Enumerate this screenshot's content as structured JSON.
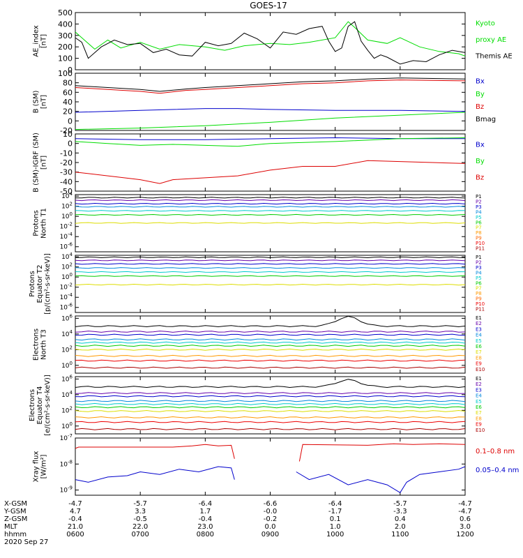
{
  "chart_data": {
    "type": "line",
    "title": "GOES-17",
    "date": "2020 Sep 27",
    "x_ticks": [
      "0600",
      "0700",
      "0800",
      "0900",
      "1000",
      "1100",
      "1200"
    ],
    "footer_rows": [
      {
        "label": "X-GSM",
        "values": [
          "-4.7",
          "-5.7",
          "-6.4",
          "-6.6",
          "-6.4",
          "-5.7",
          "-4.7"
        ]
      },
      {
        "label": "Y-GSM",
        "values": [
          "4.7",
          "3.3",
          "1.7",
          "-0.0",
          "-1.7",
          "-3.3",
          "-4.7"
        ]
      },
      {
        "label": "Z-GSM",
        "values": [
          "-0.4",
          "-0.5",
          "-0.4",
          "-0.2",
          "0.1",
          "0.4",
          "0.6"
        ]
      },
      {
        "label": "MLT",
        "values": [
          "21.0",
          "22.0",
          "23.0",
          "0.0",
          "1.0",
          "2.0",
          "3.0"
        ]
      },
      {
        "label": "hhmm",
        "values": [
          "0600",
          "0700",
          "0800",
          "0900",
          "1000",
          "1100",
          "1200"
        ]
      }
    ],
    "panels": [
      {
        "id": "ae",
        "ylabel": [
          "AE_index",
          "[nT]"
        ],
        "yticks": [
          "500",
          "400",
          "300",
          "200",
          "100",
          "0"
        ],
        "ymin": 0,
        "ymax": 500,
        "legend": [
          {
            "text": "Kyoto",
            "color": "#00dd00"
          },
          {
            "text": "proxy AE",
            "color": "#00dd00"
          },
          {
            "text": "Themis AE",
            "color": "#000000"
          }
        ],
        "series": [
          {
            "name": "Kyoto proxy AE",
            "color": "#00dd00",
            "x": [
              6.0,
              6.1,
              6.3,
              6.5,
              6.7,
              7.0,
              7.3,
              7.6,
              8.0,
              8.3,
              8.6,
              9.0,
              9.3,
              9.6,
              10.0,
              10.2,
              10.3,
              10.5,
              10.8,
              11.0,
              11.3,
              11.6,
              11.9,
              12.0
            ],
            "y": [
              330,
              280,
              180,
              260,
              190,
              240,
              180,
              220,
              200,
              170,
              210,
              230,
              220,
              240,
              280,
              420,
              370,
              260,
              230,
              280,
              200,
              160,
              140,
              120
            ]
          },
          {
            "name": "Themis AE",
            "color": "#000000",
            "x": [
              6.0,
              6.1,
              6.2,
              6.4,
              6.6,
              6.8,
              7.0,
              7.2,
              7.4,
              7.6,
              7.8,
              8.0,
              8.2,
              8.4,
              8.6,
              8.8,
              9.0,
              9.2,
              9.4,
              9.6,
              9.8,
              9.9,
              10.0,
              10.1,
              10.2,
              10.3,
              10.4,
              10.5,
              10.6,
              10.7,
              10.8,
              11.0,
              11.2,
              11.4,
              11.6,
              11.8,
              12.0
            ],
            "y": [
              280,
              240,
              100,
              200,
              260,
              220,
              230,
              150,
              180,
              130,
              120,
              240,
              210,
              230,
              320,
              270,
              190,
              330,
              310,
              360,
              380,
              250,
              160,
              190,
              380,
              420,
              250,
              170,
              100,
              130,
              110,
              50,
              80,
              70,
              130,
              170,
              150
            ]
          }
        ]
      },
      {
        "id": "b",
        "ylabel": [
          "B (SM)",
          "[nT]"
        ],
        "yticks": [
          "100",
          "80",
          "60",
          "40",
          "20",
          "0",
          "-20"
        ],
        "ymin": -20,
        "ymax": 100,
        "legend": [
          {
            "text": "Bx",
            "color": "#0000cc"
          },
          {
            "text": "By",
            "color": "#00dd00"
          },
          {
            "text": "Bz",
            "color": "#dd0000"
          },
          {
            "text": "Bmag",
            "color": "#000000"
          }
        ],
        "series": [
          {
            "name": "Bx",
            "color": "#0000cc",
            "x": [
              6.0,
              7.0,
              8.0,
              8.5,
              9.0,
              10.0,
              11.0,
              12.0
            ],
            "y": [
              18,
              22,
              26,
              26,
              24,
              22,
              22,
              20
            ]
          },
          {
            "name": "By",
            "color": "#00dd00",
            "x": [
              6.0,
              7.0,
              8.0,
              9.0,
              10.0,
              11.0,
              12.0
            ],
            "y": [
              -18,
              -15,
              -10,
              -3,
              6,
              12,
              18
            ]
          },
          {
            "name": "Bz",
            "color": "#dd0000",
            "x": [
              6.0,
              6.5,
              7.0,
              7.3,
              7.7,
              8.0,
              8.5,
              9.0,
              9.5,
              10.0,
              10.5,
              11.0,
              12.0
            ],
            "y": [
              70,
              66,
              62,
              58,
              64,
              66,
              70,
              74,
              78,
              80,
              84,
              86,
              84
            ]
          },
          {
            "name": "Bmag",
            "color": "#000000",
            "x": [
              6.0,
              6.5,
              7.0,
              7.3,
              7.7,
              8.0,
              8.5,
              9.0,
              9.5,
              10.0,
              10.5,
              11.0,
              12.0
            ],
            "y": [
              74,
              70,
              66,
              62,
              67,
              70,
              74,
              78,
              82,
              84,
              88,
              90,
              88
            ]
          }
        ]
      },
      {
        "id": "bd",
        "ylabel": [
          "B (SM)-IGRF (SM)",
          "[nT]"
        ],
        "yticks": [
          "10",
          "0",
          "-10",
          "-20",
          "-30",
          "-40",
          "-50"
        ],
        "ymin": -50,
        "ymax": 10,
        "legend": [
          {
            "text": "Bx",
            "color": "#0000cc"
          },
          {
            "text": "By",
            "color": "#00dd00"
          },
          {
            "text": "Bz",
            "color": "#dd0000"
          }
        ],
        "series": [
          {
            "name": "Bx",
            "color": "#0000cc",
            "x": [
              6.0,
              7.0,
              8.0,
              9.0,
              10.0,
              11.0,
              12.0
            ],
            "y": [
              5,
              4,
              4,
              5,
              6,
              5,
              5
            ]
          },
          {
            "name": "By",
            "color": "#00dd00",
            "x": [
              6.0,
              6.5,
              7.0,
              7.5,
              8.0,
              8.5,
              9.0,
              10.0,
              11.0,
              12.0
            ],
            "y": [
              2,
              0,
              -2,
              -1,
              -2,
              -3,
              0,
              2,
              5,
              6
            ]
          },
          {
            "name": "Bz",
            "color": "#dd0000",
            "x": [
              6.0,
              6.5,
              7.0,
              7.3,
              7.5,
              8.0,
              8.5,
              9.0,
              9.5,
              10.0,
              10.5,
              11.0,
              11.5,
              12.0
            ],
            "y": [
              -30,
              -34,
              -38,
              -42,
              -38,
              -36,
              -34,
              -28,
              -24,
              -24,
              -18,
              -19,
              -20,
              -21
            ]
          }
        ]
      },
      {
        "id": "pn",
        "ylabel": [
          "Protons",
          "North T1"
        ],
        "log": true,
        "yexp": [
          4,
          2,
          0,
          -2,
          -4,
          -6
        ],
        "ymin": -7,
        "ymax": 4.3,
        "legend": [
          {
            "text": "P1",
            "color": "#000000"
          },
          {
            "text": "P2",
            "color": "#6600aa"
          },
          {
            "text": "P3",
            "color": "#0000cc"
          },
          {
            "text": "P4",
            "color": "#0088dd"
          },
          {
            "text": "P5",
            "color": "#00cccc"
          },
          {
            "text": "P6",
            "color": "#00cc00"
          },
          {
            "text": "P7",
            "color": "#dddd00"
          },
          {
            "text": "P8",
            "color": "#ff9900"
          },
          {
            "text": "P9",
            "color": "#ff6600"
          },
          {
            "text": "P10",
            "color": "#ee0000"
          },
          {
            "text": "P11",
            "color": "#aa0000"
          }
        ],
        "levels": [
          {
            "color": "#000000",
            "v": 3.7
          },
          {
            "color": "#6600aa",
            "v": 3.2
          },
          {
            "color": "#0000cc",
            "v": 2.5
          },
          {
            "color": "#0088dd",
            "v": 1.9
          },
          {
            "color": "#00cccc",
            "v": 1.1
          },
          {
            "color": "#00cc00",
            "v": 0.3
          },
          {
            "color": "#dddd00",
            "v": -1.3
          }
        ]
      },
      {
        "id": "pe",
        "ylabel": [
          "Protons",
          "Equator T2",
          "[p/(cm²-s-sr-keV)]"
        ],
        "log": true,
        "yexp": [
          4,
          2,
          0,
          -2,
          -4,
          -6
        ],
        "ymin": -7,
        "ymax": 4.3,
        "legend": [
          {
            "text": "P1",
            "color": "#000000"
          },
          {
            "text": "P2",
            "color": "#6600aa"
          },
          {
            "text": "P3",
            "color": "#0000cc"
          },
          {
            "text": "P4",
            "color": "#0088dd"
          },
          {
            "text": "P5",
            "color": "#00cccc"
          },
          {
            "text": "P6",
            "color": "#00cc00"
          },
          {
            "text": "P7",
            "color": "#dddd00"
          },
          {
            "text": "P8",
            "color": "#ff9900"
          },
          {
            "text": "P9",
            "color": "#ff6600"
          },
          {
            "text": "P10",
            "color": "#ee0000"
          },
          {
            "text": "P11",
            "color": "#aa0000"
          }
        ],
        "levels": [
          {
            "color": "#000000",
            "v": 3.9
          },
          {
            "color": "#6600aa",
            "v": 3.3
          },
          {
            "color": "#0000cc",
            "v": 2.6
          },
          {
            "color": "#0088dd",
            "v": 1.8
          },
          {
            "color": "#00cccc",
            "v": 1.0
          },
          {
            "color": "#00cc00",
            "v": 0.2
          },
          {
            "color": "#dddd00",
            "v": -1.5
          }
        ]
      },
      {
        "id": "en",
        "ylabel": [
          "Electrons",
          "North T3"
        ],
        "log": true,
        "yexp": [
          6,
          4,
          2,
          0
        ],
        "ymin": -1,
        "ymax": 6.3,
        "legend": [
          {
            "text": "E1",
            "color": "#000000"
          },
          {
            "text": "E2",
            "color": "#6600aa"
          },
          {
            "text": "E3",
            "color": "#0000cc"
          },
          {
            "text": "E4",
            "color": "#0088dd"
          },
          {
            "text": "E5",
            "color": "#00cccc"
          },
          {
            "text": "E6",
            "color": "#00cc00"
          },
          {
            "text": "E7",
            "color": "#dddd00"
          },
          {
            "text": "E8",
            "color": "#ff9900"
          },
          {
            "text": "E9",
            "color": "#ee0000"
          },
          {
            "text": "E10",
            "color": "#aa0000"
          }
        ],
        "levels": [
          {
            "color": "#000000",
            "v": 5.0,
            "bump": 1.2
          },
          {
            "color": "#6600aa",
            "v": 4.3
          },
          {
            "color": "#0000cc",
            "v": 3.9
          },
          {
            "color": "#0088dd",
            "v": 3.3
          },
          {
            "color": "#00cccc",
            "v": 2.9
          },
          {
            "color": "#00cc00",
            "v": 2.5
          },
          {
            "color": "#dddd00",
            "v": 2.0
          },
          {
            "color": "#ff9900",
            "v": 1.2
          },
          {
            "color": "#ee0000",
            "v": 0.6
          },
          {
            "color": "#aa0000",
            "v": -0.3
          }
        ]
      },
      {
        "id": "ee",
        "ylabel": [
          "Electrons",
          "Equator T4",
          "[e/(cm²-s-sr-keV)]"
        ],
        "log": true,
        "yexp": [
          6,
          4,
          2,
          0
        ],
        "ymin": -1,
        "ymax": 6.3,
        "legend": [
          {
            "text": "E1",
            "color": "#000000"
          },
          {
            "text": "E2",
            "color": "#6600aa"
          },
          {
            "text": "E3",
            "color": "#0000cc"
          },
          {
            "text": "E4",
            "color": "#0088dd"
          },
          {
            "text": "E5",
            "color": "#00cccc"
          },
          {
            "text": "E6",
            "color": "#00cc00"
          },
          {
            "text": "E7",
            "color": "#dddd00"
          },
          {
            "text": "E8",
            "color": "#ff9900"
          },
          {
            "text": "E9",
            "color": "#ee0000"
          },
          {
            "text": "E10",
            "color": "#aa0000"
          }
        ],
        "levels": [
          {
            "color": "#000000",
            "v": 5.0,
            "bump": 0.9
          },
          {
            "color": "#6600aa",
            "v": 4.2
          },
          {
            "color": "#0000cc",
            "v": 3.8
          },
          {
            "color": "#0088dd",
            "v": 3.2
          },
          {
            "color": "#00cccc",
            "v": 2.8
          },
          {
            "color": "#00cc00",
            "v": 2.4
          },
          {
            "color": "#dddd00",
            "v": 1.9
          },
          {
            "color": "#ff9900",
            "v": 1.1
          },
          {
            "color": "#ee0000",
            "v": 0.5
          },
          {
            "color": "#aa0000",
            "v": -0.4
          }
        ]
      },
      {
        "id": "xr",
        "ylabel": [
          "Xray flux",
          "[W/m²]"
        ],
        "log": true,
        "yexp": [
          -7,
          -8,
          -9
        ],
        "ymin": -9.2,
        "ymax": -7,
        "legend": [
          {
            "text": "0.1–0.8 nm",
            "color": "#dd0000"
          },
          {
            "text": "0.05–0.4 nm",
            "color": "#0000cc"
          }
        ],
        "series": [
          {
            "name": "0.1–0.8 nm",
            "color": "#dd0000",
            "x": [
              6.0,
              6.05,
              7.5,
              7.8,
              8.0,
              8.2,
              8.4,
              8.45
            ],
            "y": [
              -7.4,
              -7.35,
              -7.35,
              -7.3,
              -7.25,
              -7.3,
              -7.28,
              -7.8
            ]
          },
          {
            "name": "0.1–0.8 nm",
            "color": "#dd0000",
            "x": [
              9.45,
              9.5,
              10.5,
              10.9,
              11.2,
              11.6,
              12.0
            ],
            "y": [
              -7.9,
              -7.25,
              -7.28,
              -7.22,
              -7.25,
              -7.22,
              -7.25
            ]
          },
          {
            "name": "0.05–0.4 nm",
            "color": "#0000cc",
            "x": [
              6.0,
              6.2,
              6.5,
              6.8,
              7.0,
              7.3,
              7.6,
              7.9,
              8.2,
              8.4,
              8.45
            ],
            "y": [
              -8.6,
              -8.7,
              -8.5,
              -8.45,
              -8.3,
              -8.4,
              -8.2,
              -8.3,
              -8.1,
              -8.15,
              -8.6
            ]
          },
          {
            "name": "0.05–0.4 nm",
            "color": "#0000cc",
            "x": [
              9.4,
              9.6,
              9.9,
              10.2,
              10.5,
              10.8,
              11.0,
              11.1,
              11.3,
              11.6,
              11.9,
              12.0
            ],
            "y": [
              -8.3,
              -8.6,
              -8.4,
              -8.8,
              -8.6,
              -8.8,
              -9.1,
              -8.7,
              -8.4,
              -8.3,
              -8.2,
              -8.1
            ]
          }
        ]
      }
    ]
  }
}
